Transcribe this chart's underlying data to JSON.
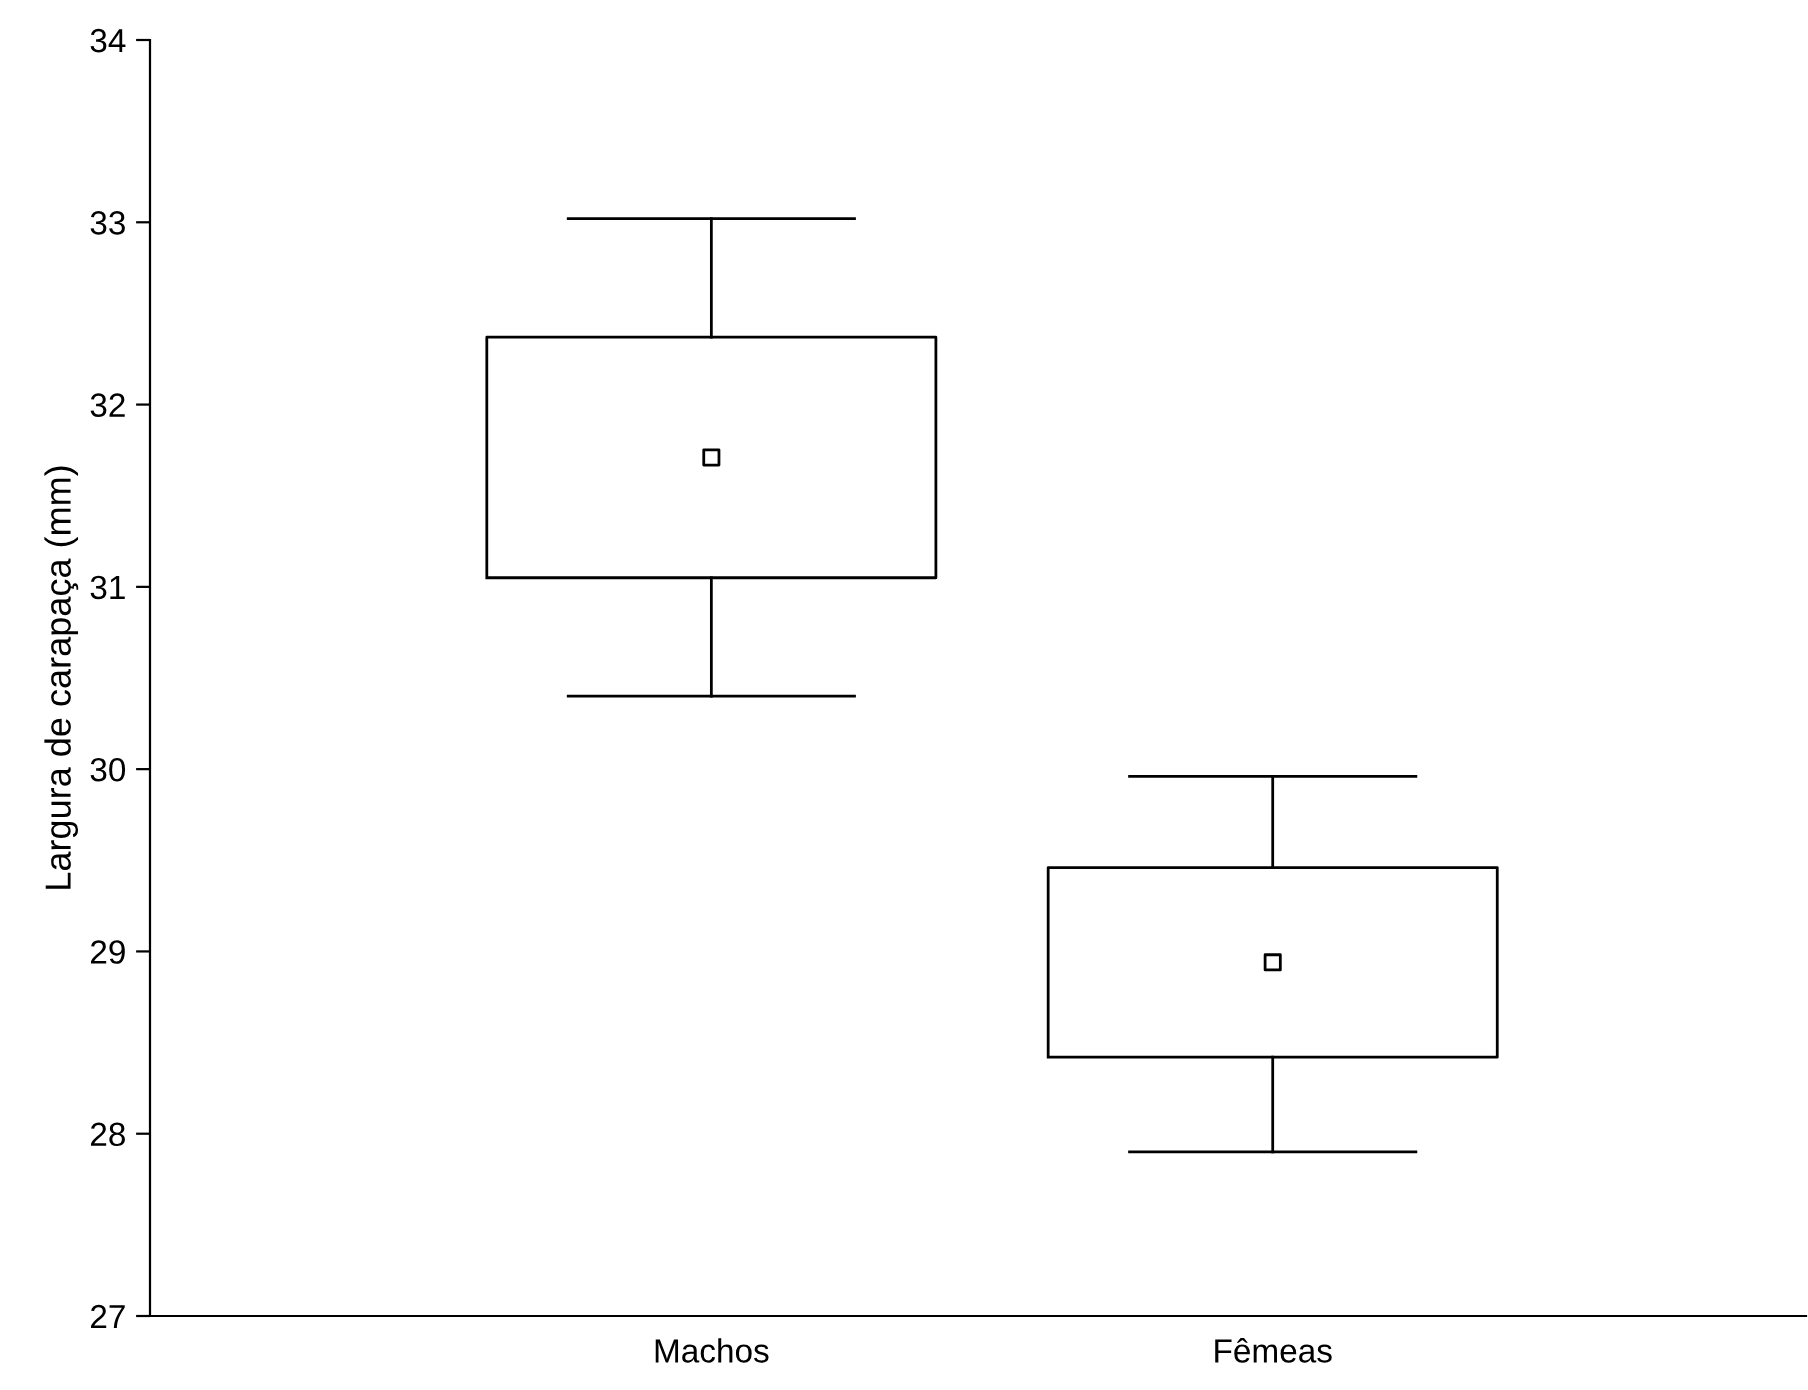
{
  "chart_data": {
    "type": "box",
    "ylabel": "Largura de carapaça (mm)",
    "categories": [
      "Machos",
      "Fêmeas"
    ],
    "boxes": [
      {
        "low": 30.4,
        "q1": 31.05,
        "median": 31.71,
        "q3": 32.37,
        "high": 33.02
      },
      {
        "low": 27.9,
        "q1": 28.42,
        "median": 28.94,
        "q3": 29.46,
        "high": 29.96
      }
    ],
    "ylim": [
      27,
      34
    ],
    "yticks": [
      27,
      28,
      29,
      30,
      31,
      32,
      33,
      34
    ],
    "grid": false,
    "marker": "square",
    "color": "#000000"
  }
}
